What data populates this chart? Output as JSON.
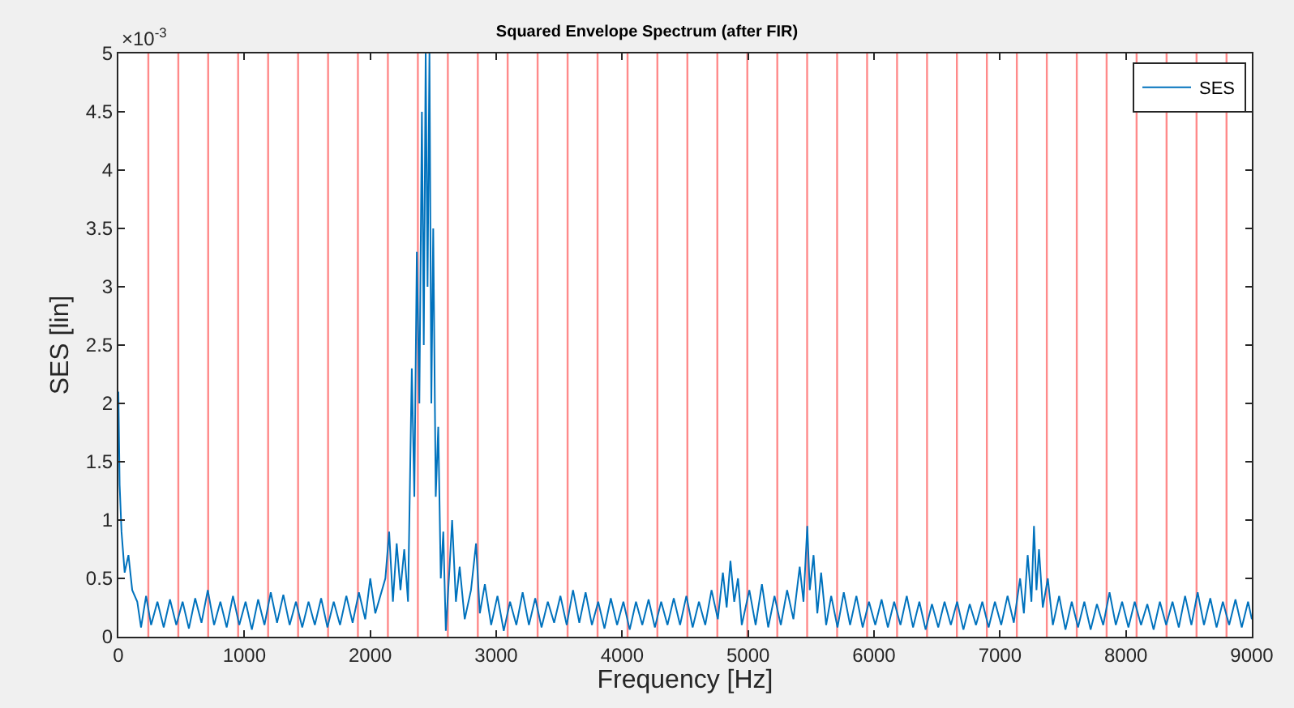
{
  "chart_data": {
    "type": "line",
    "title": "Squared Envelope Spectrum (after FIR)",
    "xlabel": "Frequency [Hz]",
    "ylabel": "SES [lin]",
    "annotations": [
      "×10$^{-3}$"
    ],
    "xlim": [
      0,
      9000
    ],
    "xticks": [
      0,
      1000,
      2000,
      3000,
      4000,
      5000,
      6000,
      7000,
      8000,
      9000
    ],
    "ylim": [
      0,
      5
    ],
    "yticks": [
      0,
      0.5,
      1,
      1.5,
      2,
      2.5,
      3,
      3.5,
      4,
      4.5,
      5
    ],
    "legend": "top right",
    "series": [
      {
        "name": "SES",
        "color": "#0072bd",
        "x": [
          0,
          10,
          25,
          50,
          80,
          110,
          150,
          180,
          220,
          260,
          310,
          360,
          410,
          460,
          510,
          560,
          610,
          660,
          710,
          760,
          810,
          860,
          910,
          960,
          1010,
          1060,
          1110,
          1160,
          1210,
          1260,
          1310,
          1360,
          1410,
          1460,
          1510,
          1560,
          1610,
          1660,
          1710,
          1760,
          1810,
          1860,
          1910,
          1960,
          2000,
          2040,
          2080,
          2120,
          2150,
          2180,
          2210,
          2240,
          2270,
          2300,
          2330,
          2350,
          2370,
          2390,
          2410,
          2425,
          2440,
          2455,
          2470,
          2485,
          2500,
          2520,
          2540,
          2560,
          2580,
          2600,
          2630,
          2650,
          2680,
          2710,
          2750,
          2800,
          2840,
          2870,
          2910,
          2960,
          3010,
          3060,
          3110,
          3160,
          3210,
          3260,
          3310,
          3360,
          3410,
          3460,
          3510,
          3560,
          3610,
          3660,
          3710,
          3760,
          3810,
          3860,
          3910,
          3960,
          4010,
          4060,
          4110,
          4160,
          4210,
          4260,
          4310,
          4360,
          4410,
          4460,
          4510,
          4560,
          4610,
          4660,
          4710,
          4760,
          4800,
          4830,
          4860,
          4890,
          4920,
          4950,
          5010,
          5060,
          5110,
          5160,
          5210,
          5260,
          5310,
          5360,
          5410,
          5440,
          5470,
          5490,
          5520,
          5550,
          5580,
          5620,
          5660,
          5710,
          5760,
          5810,
          5860,
          5910,
          5960,
          6010,
          6060,
          6110,
          6160,
          6210,
          6260,
          6310,
          6360,
          6410,
          6460,
          6510,
          6560,
          6610,
          6660,
          6710,
          6760,
          6810,
          6860,
          6910,
          6960,
          7010,
          7060,
          7110,
          7160,
          7190,
          7220,
          7250,
          7270,
          7290,
          7310,
          7340,
          7380,
          7420,
          7470,
          7520,
          7570,
          7620,
          7670,
          7720,
          7770,
          7820,
          7870,
          7920,
          7970,
          8020,
          8070,
          8120,
          8170,
          8220,
          8270,
          8320,
          8370,
          8420,
          8470,
          8520,
          8570,
          8620,
          8670,
          8720,
          8770,
          8820,
          8870,
          8920,
          8970,
          9000
        ],
        "values": [
          2.1,
          1.3,
          0.9,
          0.55,
          0.7,
          0.4,
          0.3,
          0.08,
          0.35,
          0.1,
          0.3,
          0.08,
          0.32,
          0.1,
          0.3,
          0.07,
          0.33,
          0.12,
          0.4,
          0.1,
          0.3,
          0.08,
          0.35,
          0.1,
          0.3,
          0.06,
          0.32,
          0.1,
          0.38,
          0.12,
          0.36,
          0.1,
          0.3,
          0.08,
          0.3,
          0.1,
          0.33,
          0.08,
          0.3,
          0.1,
          0.35,
          0.12,
          0.38,
          0.15,
          0.5,
          0.2,
          0.35,
          0.5,
          0.9,
          0.3,
          0.8,
          0.4,
          0.75,
          0.3,
          2.3,
          1.2,
          3.3,
          2.0,
          4.5,
          2.5,
          5.0,
          3.0,
          5.0,
          2.0,
          3.5,
          1.2,
          1.8,
          0.5,
          0.9,
          0.05,
          0.6,
          1.0,
          0.3,
          0.6,
          0.15,
          0.4,
          0.8,
          0.2,
          0.45,
          0.1,
          0.35,
          0.05,
          0.3,
          0.1,
          0.38,
          0.1,
          0.33,
          0.08,
          0.3,
          0.12,
          0.35,
          0.1,
          0.4,
          0.12,
          0.38,
          0.1,
          0.3,
          0.07,
          0.33,
          0.1,
          0.3,
          0.06,
          0.3,
          0.1,
          0.32,
          0.08,
          0.3,
          0.1,
          0.33,
          0.1,
          0.35,
          0.08,
          0.3,
          0.1,
          0.4,
          0.15,
          0.55,
          0.25,
          0.65,
          0.3,
          0.5,
          0.1,
          0.4,
          0.1,
          0.45,
          0.08,
          0.35,
          0.1,
          0.4,
          0.15,
          0.6,
          0.3,
          0.95,
          0.4,
          0.7,
          0.2,
          0.55,
          0.1,
          0.35,
          0.08,
          0.38,
          0.1,
          0.35,
          0.08,
          0.3,
          0.1,
          0.32,
          0.08,
          0.3,
          0.1,
          0.35,
          0.08,
          0.3,
          0.06,
          0.28,
          0.08,
          0.3,
          0.1,
          0.3,
          0.06,
          0.28,
          0.1,
          0.3,
          0.08,
          0.3,
          0.1,
          0.35,
          0.12,
          0.5,
          0.2,
          0.7,
          0.3,
          0.95,
          0.4,
          0.75,
          0.25,
          0.5,
          0.1,
          0.35,
          0.06,
          0.3,
          0.08,
          0.3,
          0.06,
          0.28,
          0.1,
          0.38,
          0.1,
          0.3,
          0.08,
          0.3,
          0.1,
          0.28,
          0.06,
          0.3,
          0.1,
          0.3,
          0.08,
          0.35,
          0.1,
          0.38,
          0.1,
          0.33,
          0.08,
          0.3,
          0.1,
          0.32,
          0.08,
          0.3,
          0.15
        ]
      }
    ],
    "ref_lines": [
      {
        "axis": "x",
        "value": 238,
        "color": "#ff8a8a"
      },
      {
        "axis": "x",
        "value": 476,
        "color": "#ff8a8a"
      },
      {
        "axis": "x",
        "value": 713,
        "color": "#ff8a8a"
      },
      {
        "axis": "x",
        "value": 951,
        "color": "#ff8a8a"
      },
      {
        "axis": "x",
        "value": 1189,
        "color": "#ff8a8a"
      },
      {
        "axis": "x",
        "value": 1427,
        "color": "#ff8a8a"
      },
      {
        "axis": "x",
        "value": 1665,
        "color": "#ff8a8a"
      },
      {
        "axis": "x",
        "value": 1902,
        "color": "#ff8a8a"
      },
      {
        "axis": "x",
        "value": 2140,
        "color": "#ff8a8a"
      },
      {
        "axis": "x",
        "value": 2378,
        "color": "#ff8a8a"
      },
      {
        "axis": "x",
        "value": 2616,
        "color": "#ff8a8a"
      },
      {
        "axis": "x",
        "value": 2854,
        "color": "#ff8a8a"
      },
      {
        "axis": "x",
        "value": 3091,
        "color": "#ff8a8a"
      },
      {
        "axis": "x",
        "value": 3329,
        "color": "#ff8a8a"
      },
      {
        "axis": "x",
        "value": 3567,
        "color": "#ff8a8a"
      },
      {
        "axis": "x",
        "value": 3805,
        "color": "#ff8a8a"
      },
      {
        "axis": "x",
        "value": 4043,
        "color": "#ff8a8a"
      },
      {
        "axis": "x",
        "value": 4280,
        "color": "#ff8a8a"
      },
      {
        "axis": "x",
        "value": 4518,
        "color": "#ff8a8a"
      },
      {
        "axis": "x",
        "value": 4756,
        "color": "#ff8a8a"
      },
      {
        "axis": "x",
        "value": 4994,
        "color": "#ff8a8a"
      },
      {
        "axis": "x",
        "value": 5232,
        "color": "#ff8a8a"
      },
      {
        "axis": "x",
        "value": 5469,
        "color": "#ff8a8a"
      },
      {
        "axis": "x",
        "value": 5707,
        "color": "#ff8a8a"
      },
      {
        "axis": "x",
        "value": 5945,
        "color": "#ff8a8a"
      },
      {
        "axis": "x",
        "value": 6183,
        "color": "#ff8a8a"
      },
      {
        "axis": "x",
        "value": 6421,
        "color": "#ff8a8a"
      },
      {
        "axis": "x",
        "value": 6658,
        "color": "#ff8a8a"
      },
      {
        "axis": "x",
        "value": 6896,
        "color": "#ff8a8a"
      },
      {
        "axis": "x",
        "value": 7134,
        "color": "#ff8a8a"
      },
      {
        "axis": "x",
        "value": 7372,
        "color": "#ff8a8a"
      },
      {
        "axis": "x",
        "value": 7610,
        "color": "#ff8a8a"
      },
      {
        "axis": "x",
        "value": 7847,
        "color": "#ff8a8a"
      },
      {
        "axis": "x",
        "value": 8085,
        "color": "#ff8a8a"
      },
      {
        "axis": "x",
        "value": 8323,
        "color": "#ff8a8a"
      },
      {
        "axis": "x",
        "value": 8561,
        "color": "#ff8a8a"
      },
      {
        "axis": "x",
        "value": 8799,
        "color": "#ff8a8a"
      }
    ]
  }
}
